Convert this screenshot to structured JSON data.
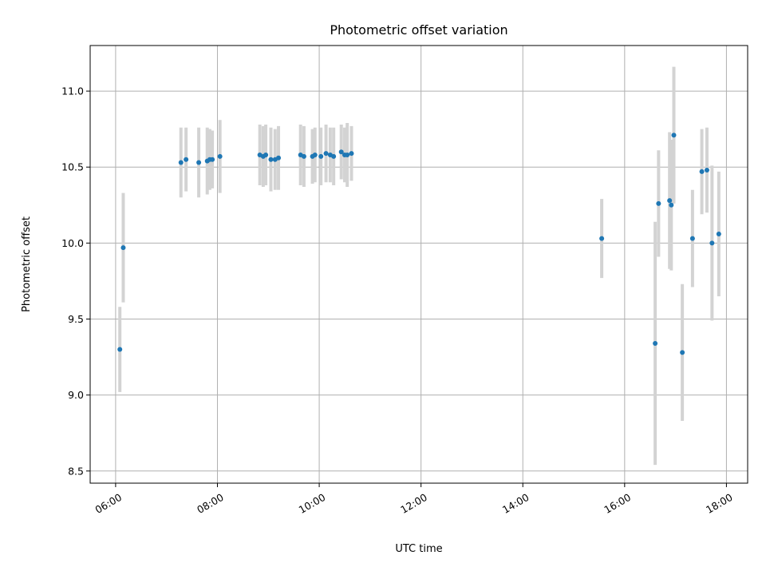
{
  "chart_data": {
    "type": "scatter",
    "title": "Photometric offset variation",
    "xlabel": "UTC time",
    "ylabel": "Photometric offset",
    "x_unit": "hour",
    "xlim": [
      "05:30",
      "18:25"
    ],
    "ylim": [
      8.42,
      11.3
    ],
    "x_ticks": [
      "06:00",
      "08:00",
      "10:00",
      "12:00",
      "14:00",
      "16:00",
      "18:00"
    ],
    "y_ticks": [
      "8.5",
      "9.0",
      "9.5",
      "10.0",
      "10.5",
      "11.0"
    ],
    "grid": true,
    "legend": "none",
    "colors": {
      "point": "#1f77b4",
      "errorbar": "#d3d3d3"
    },
    "series": [
      {
        "points": [
          {
            "x": "06:05",
            "y": 9.3,
            "err": 0.28
          },
          {
            "x": "06:09",
            "y": 9.97,
            "err": 0.36
          },
          {
            "x": "07:17",
            "y": 10.53,
            "err": 0.23
          },
          {
            "x": "07:23",
            "y": 10.55,
            "err": 0.21
          },
          {
            "x": "07:38",
            "y": 10.53,
            "err": 0.23
          },
          {
            "x": "07:48",
            "y": 10.54,
            "err": 0.22
          },
          {
            "x": "07:51",
            "y": 10.55,
            "err": 0.2
          },
          {
            "x": "07:54",
            "y": 10.55,
            "err": 0.19
          },
          {
            "x": "08:03",
            "y": 10.57,
            "err": 0.24
          },
          {
            "x": "08:50",
            "y": 10.58,
            "err": 0.2
          },
          {
            "x": "08:54",
            "y": 10.57,
            "err": 0.2
          },
          {
            "x": "08:57",
            "y": 10.58,
            "err": 0.2
          },
          {
            "x": "09:03",
            "y": 10.55,
            "err": 0.21
          },
          {
            "x": "09:08",
            "y": 10.55,
            "err": 0.2
          },
          {
            "x": "09:12",
            "y": 10.56,
            "err": 0.21
          },
          {
            "x": "09:38",
            "y": 10.58,
            "err": 0.2
          },
          {
            "x": "09:42",
            "y": 10.57,
            "err": 0.2
          },
          {
            "x": "09:52",
            "y": 10.57,
            "err": 0.18
          },
          {
            "x": "09:55",
            "y": 10.58,
            "err": 0.18
          },
          {
            "x": "10:02",
            "y": 10.57,
            "err": 0.19
          },
          {
            "x": "10:08",
            "y": 10.59,
            "err": 0.19
          },
          {
            "x": "10:13",
            "y": 10.58,
            "err": 0.18
          },
          {
            "x": "10:17",
            "y": 10.57,
            "err": 0.19
          },
          {
            "x": "10:26",
            "y": 10.6,
            "err": 0.18
          },
          {
            "x": "10:30",
            "y": 10.58,
            "err": 0.18
          },
          {
            "x": "10:33",
            "y": 10.58,
            "err": 0.21
          },
          {
            "x": "10:38",
            "y": 10.59,
            "err": 0.18
          },
          {
            "x": "15:33",
            "y": 10.03,
            "err": 0.26
          },
          {
            "x": "16:36",
            "y": 9.34,
            "err": 0.8
          },
          {
            "x": "16:40",
            "y": 10.26,
            "err": 0.35
          },
          {
            "x": "16:53",
            "y": 10.28,
            "err": 0.45
          },
          {
            "x": "16:55",
            "y": 10.25,
            "err": 0.43
          },
          {
            "x": "16:58",
            "y": 10.71,
            "err": 0.45
          },
          {
            "x": "17:08",
            "y": 9.28,
            "err": 0.45
          },
          {
            "x": "17:20",
            "y": 10.03,
            "err": 0.32
          },
          {
            "x": "17:31",
            "y": 10.47,
            "err": 0.28
          },
          {
            "x": "17:37",
            "y": 10.48,
            "err": 0.28
          },
          {
            "x": "17:43",
            "y": 10.0,
            "err": 0.51
          },
          {
            "x": "17:51",
            "y": 10.06,
            "err": 0.41
          }
        ]
      }
    ]
  }
}
